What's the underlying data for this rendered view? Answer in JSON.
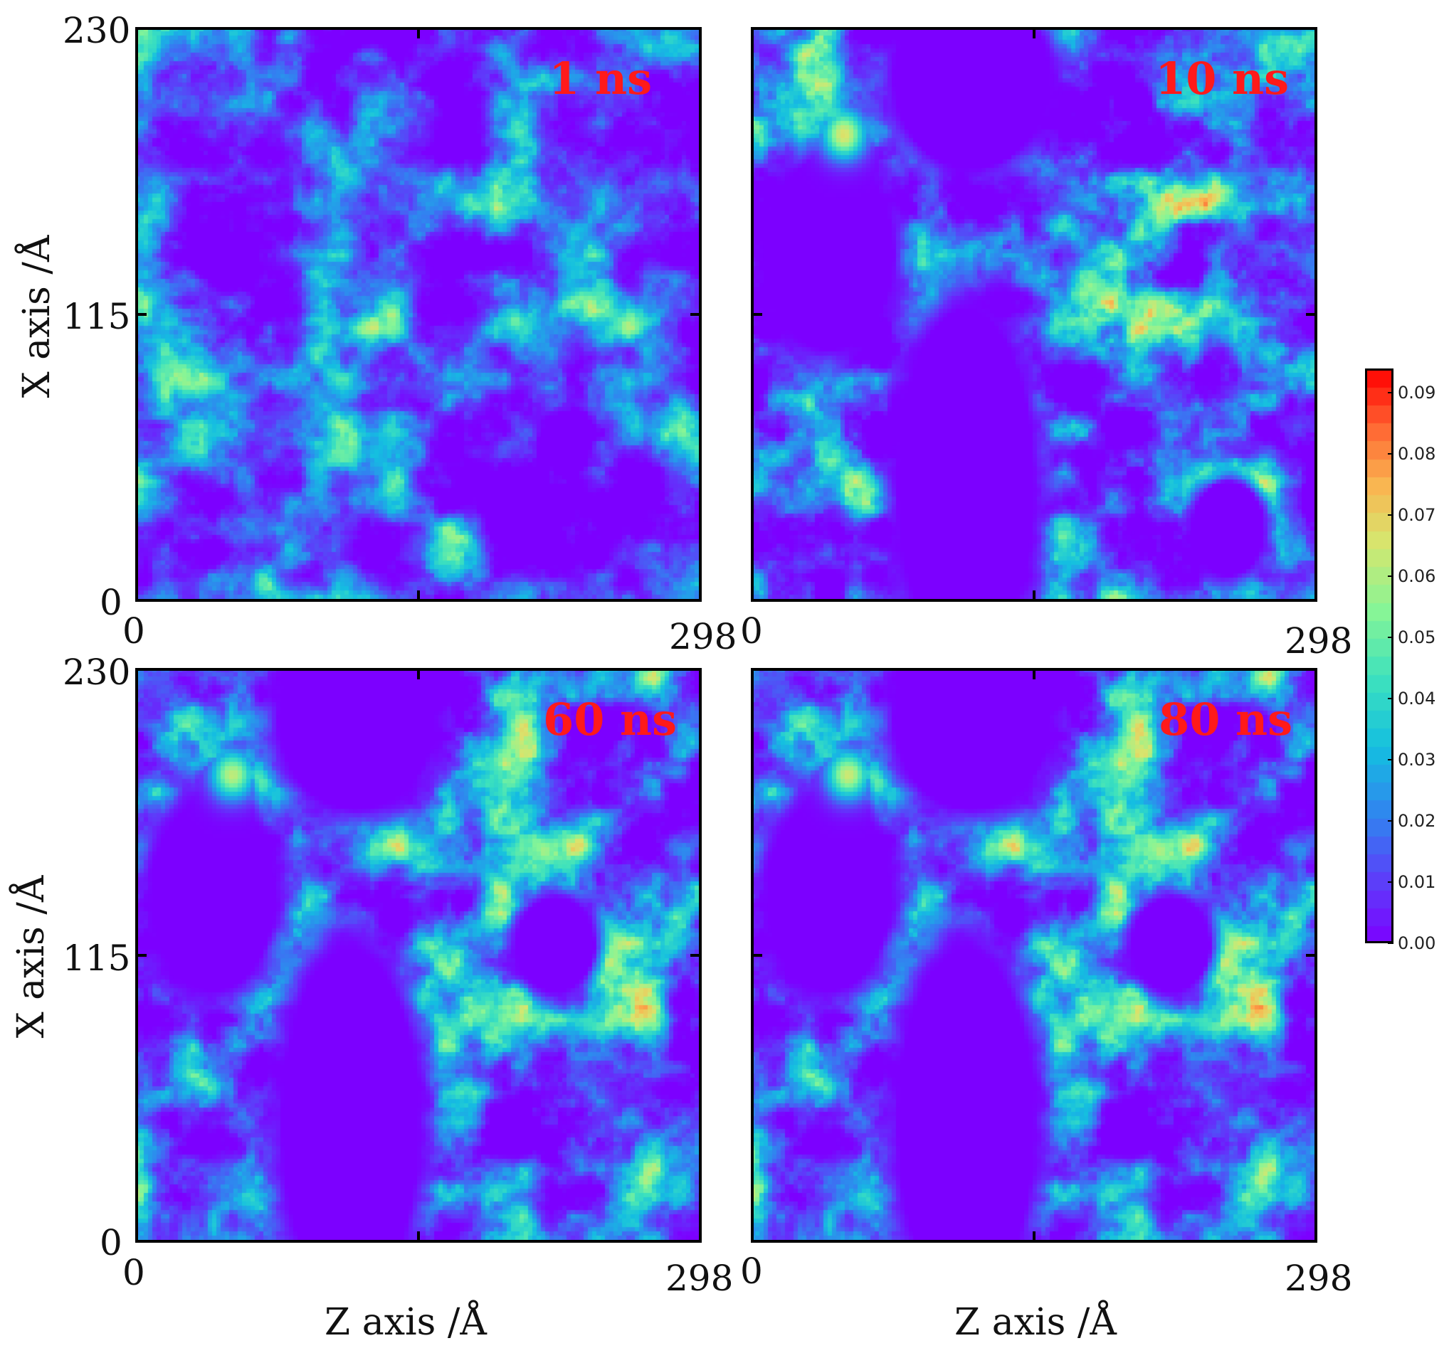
{
  "chart_data": [
    {
      "type": "heatmap",
      "panel_label": "1 ns",
      "xlabel": "",
      "ylabel": "X axis /Å",
      "xlim": [
        0,
        298
      ],
      "ylim": [
        0,
        230
      ],
      "x_tick_labels": [
        "0",
        "298"
      ],
      "y_tick_labels": [
        "0",
        "115",
        "230"
      ],
      "seed": 11,
      "voids": [],
      "max_value": 0.06
    },
    {
      "type": "heatmap",
      "panel_label": "10 ns",
      "xlabel": "",
      "ylabel": "",
      "xlim": [
        0,
        298
      ],
      "ylim": [
        0,
        230
      ],
      "x_tick_labels": [
        "0",
        "298"
      ],
      "y_tick_labels": [],
      "seed": 23,
      "voids": [
        {
          "x": 115,
          "y": 210,
          "rx": 48,
          "ry": 42
        },
        {
          "x": 40,
          "y": 140,
          "rx": 40,
          "ry": 45
        },
        {
          "x": 112,
          "y": 48,
          "rx": 42,
          "ry": 82
        },
        {
          "x": 250,
          "y": 30,
          "rx": 22,
          "ry": 22
        }
      ],
      "hotspot": {
        "x": 48,
        "y": 188,
        "value": 0.075
      },
      "max_value": 0.075
    },
    {
      "type": "heatmap",
      "panel_label": "60 ns",
      "xlabel": "Z axis /Å",
      "ylabel": "X axis /Å",
      "xlim": [
        0,
        298
      ],
      "ylim": [
        0,
        230
      ],
      "x_tick_labels": [
        "0",
        "298"
      ],
      "y_tick_labels": [
        "0",
        "115",
        "230"
      ],
      "seed": 37,
      "voids": [
        {
          "x": 115,
          "y": 210,
          "rx": 48,
          "ry": 42
        },
        {
          "x": 40,
          "y": 140,
          "rx": 38,
          "ry": 45
        },
        {
          "x": 112,
          "y": 48,
          "rx": 42,
          "ry": 82
        },
        {
          "x": 220,
          "y": 120,
          "rx": 24,
          "ry": 22
        }
      ],
      "hotspot": {
        "x": 50,
        "y": 188,
        "value": 0.07
      },
      "max_value": 0.07
    },
    {
      "type": "heatmap",
      "panel_label": "80 ns",
      "xlabel": "Z axis /Å",
      "ylabel": "",
      "xlim": [
        0,
        298
      ],
      "ylim": [
        0,
        230
      ],
      "x_tick_labels": [
        "0",
        "298"
      ],
      "y_tick_labels": [],
      "seed": 37,
      "voids": [
        {
          "x": 115,
          "y": 210,
          "rx": 48,
          "ry": 42
        },
        {
          "x": 40,
          "y": 140,
          "rx": 38,
          "ry": 45
        },
        {
          "x": 112,
          "y": 48,
          "rx": 42,
          "ry": 82
        },
        {
          "x": 220,
          "y": 120,
          "rx": 24,
          "ry": 22
        }
      ],
      "hotspot": {
        "x": 50,
        "y": 188,
        "value": 0.072
      },
      "max_value": 0.072
    }
  ],
  "colorbar": {
    "min": 0.0,
    "max": 0.094,
    "tick_labels": [
      "0.00",
      "0.01",
      "0.02",
      "0.03",
      "0.04",
      "0.05",
      "0.06",
      "0.07",
      "0.08",
      "0.09"
    ],
    "tick_values": [
      0.0,
      0.01,
      0.02,
      0.03,
      0.04,
      0.05,
      0.06,
      0.07,
      0.08,
      0.09
    ],
    "colormap": "rainbow"
  }
}
